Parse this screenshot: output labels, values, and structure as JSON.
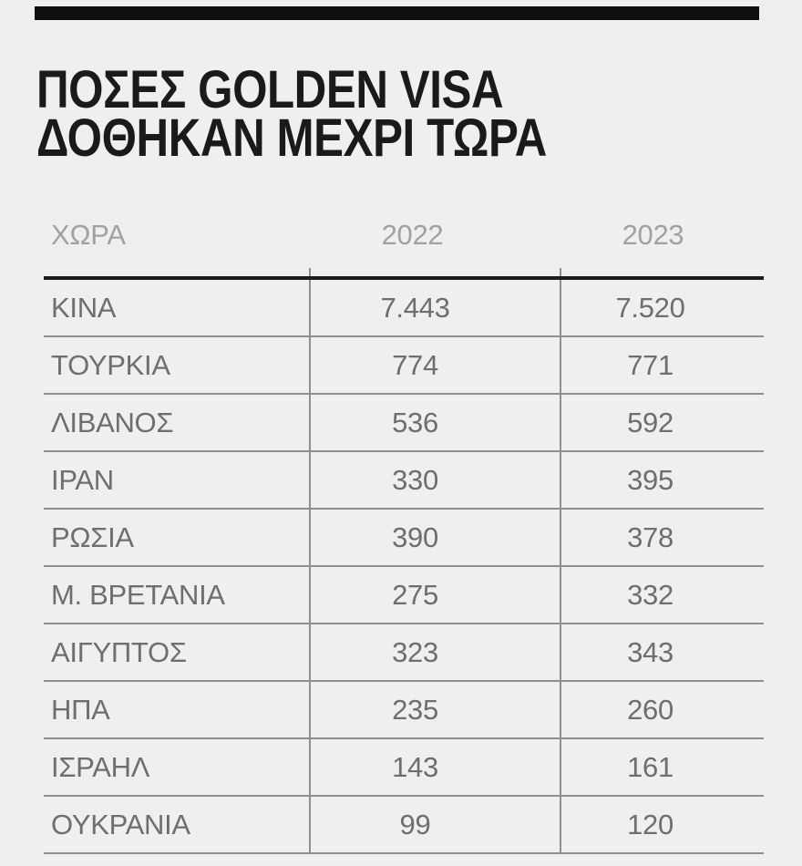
{
  "header": {
    "title": "ΠΟΣΕΣ GOLDEN VISA\nΔΟΘΗΚΑΝ ΜΕΧΡΙ ΤΩΡΑ"
  },
  "table": {
    "columns": [
      "ΧΩΡΑ",
      "2022",
      "2023"
    ],
    "rows": [
      [
        "ΚΙΝΑ",
        "7.443",
        "7.520"
      ],
      [
        "ΤΟΥΡΚΙΑ",
        "774",
        "771"
      ],
      [
        "ΛΙΒΑΝΟΣ",
        "536",
        "592"
      ],
      [
        "ΙΡΑΝ",
        "330",
        "395"
      ],
      [
        "ΡΩΣΙΑ",
        "390",
        "378"
      ],
      [
        "Μ. ΒΡΕΤΑΝΙΑ",
        "275",
        "332"
      ],
      [
        "ΑΙΓΥΠΤΟΣ",
        "323",
        "343"
      ],
      [
        "ΗΠΑ",
        "235",
        "260"
      ],
      [
        "ΙΣΡΑΗΛ",
        "143",
        "161"
      ],
      [
        "ΟΥΚΡΑΝΙΑ",
        "99",
        "120"
      ]
    ]
  },
  "colors": {
    "background": "#efeff0",
    "top_bar": "#0f0f0f",
    "title_text": "#1a1a1a",
    "header_text": "#a1a1a1",
    "cell_text": "#6e6e6e",
    "grid_line": "#8f8f8f",
    "thick_rule": "#1b1b1b"
  },
  "chart_data": {
    "type": "table",
    "title": "ΠΟΣΕΣ GOLDEN VISA ΔΟΘΗΚΑΝ ΜΕΧΡΙ ΤΩΡΑ",
    "columns": [
      "ΧΩΡΑ",
      "2022",
      "2023"
    ],
    "categories": [
      "ΚΙΝΑ",
      "ΤΟΥΡΚΙΑ",
      "ΛΙΒΑΝΟΣ",
      "ΙΡΑΝ",
      "ΡΩΣΙΑ",
      "Μ. ΒΡΕΤΑΝΙΑ",
      "ΑΙΓΥΠΤΟΣ",
      "ΗΠΑ",
      "ΙΣΡΑΗΛ",
      "ΟΥΚΡΑΝΙΑ"
    ],
    "series": [
      {
        "name": "2022",
        "values": [
          7443,
          774,
          536,
          330,
          390,
          275,
          323,
          235,
          143,
          99
        ]
      },
      {
        "name": "2023",
        "values": [
          7520,
          771,
          592,
          395,
          378,
          332,
          343,
          260,
          161,
          120
        ]
      }
    ],
    "legend_position": "none",
    "grid": true
  }
}
